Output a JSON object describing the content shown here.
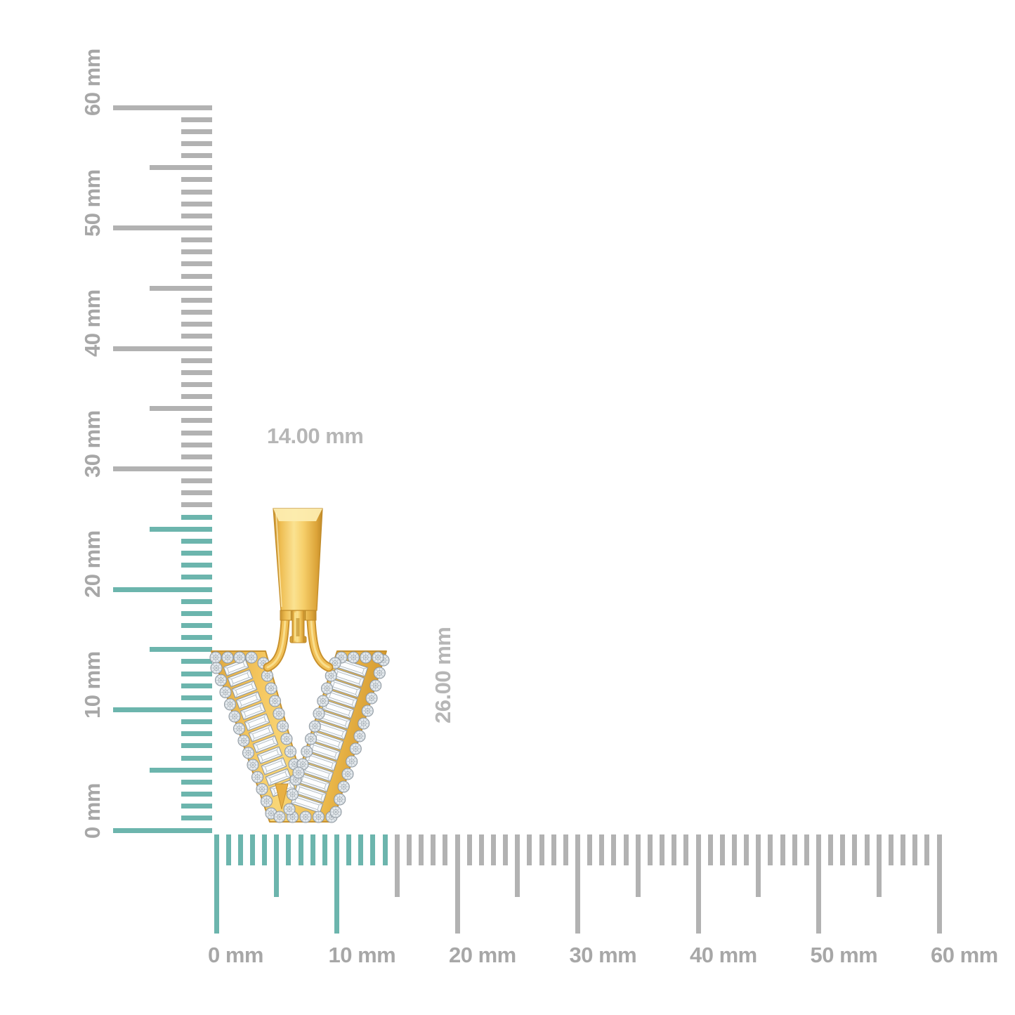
{
  "diagram": {
    "type": "jewelry-size-measurement",
    "background": "#FFFFFF",
    "pendant": {
      "letter": "V",
      "style": "yellow gold initial pendant with baguette and round pave diamonds",
      "width_label": "14.00 mm",
      "height_label": "26.00 mm"
    },
    "rulers": {
      "unit": "mm",
      "max_mm": 60,
      "vertical": {
        "labels": [
          "0 mm",
          "10 mm",
          "20 mm",
          "30 mm",
          "40 mm",
          "50 mm",
          "60 mm"
        ],
        "highlighted_extent_mm": 26
      },
      "horizontal": {
        "labels": [
          "0 mm",
          "10 mm",
          "20 mm",
          "30 mm",
          "40 mm",
          "50 mm",
          "60 mm"
        ],
        "highlighted_extent_mm": 14
      }
    },
    "colors": {
      "tick_gray": "#B2B2B2",
      "tick_highlight": "#6CB5AD",
      "ruler_label": "#A7A7A7",
      "dimension_label": "#B6B6B6",
      "gold": "#F2C252",
      "gold_dark": "#C9922E",
      "gold_light": "#FBE291",
      "diamond": "#F5F8FA",
      "diamond_edge": "#8A939B"
    }
  }
}
